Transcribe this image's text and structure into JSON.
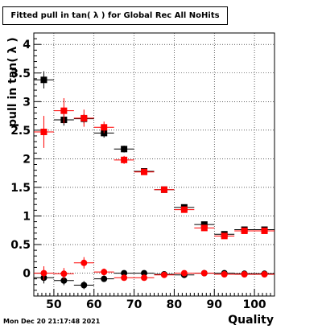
{
  "chart_data": {
    "type": "scatter",
    "title": "Fitted pull in tan( λ ) for Global Rec All NoHits",
    "xlabel": "Quality",
    "ylabel": "pull in tan( λ )",
    "xlim": [
      45,
      105
    ],
    "ylim": [
      -0.4,
      4.2
    ],
    "xticks": [
      50,
      60,
      70,
      80,
      90,
      100
    ],
    "yticks": [
      0,
      0.5,
      1,
      1.5,
      2,
      2.5,
      3,
      3.5,
      4
    ],
    "grid": true,
    "x_halfwidth": 2.5,
    "series": [
      {
        "name": "",
        "color": "#000000",
        "marker": "square",
        "x": [
          47.5,
          52.5,
          57.5,
          62.5,
          67.5,
          72.5,
          77.5,
          82.5,
          87.5,
          92.5,
          97.5,
          102.5
        ],
        "y": [
          3.38,
          2.68,
          2.7,
          2.45,
          2.17,
          1.78,
          1.46,
          1.15,
          0.85,
          0.68,
          0.76,
          0.76
        ],
        "yerr": [
          0.15,
          0.1,
          0.08,
          0.08,
          0.06,
          0.04,
          0.03,
          0.03,
          0.03,
          0.03,
          0.03,
          0.03
        ]
      },
      {
        "name": "",
        "color": "#ff0000",
        "marker": "square",
        "x": [
          47.5,
          52.5,
          57.5,
          62.5,
          67.5,
          72.5,
          77.5,
          82.5,
          87.5,
          92.5,
          97.5,
          102.5
        ],
        "y": [
          2.47,
          2.84,
          2.71,
          2.55,
          1.98,
          1.77,
          1.46,
          1.11,
          0.79,
          0.65,
          0.74,
          0.74
        ],
        "yerr": [
          0.28,
          0.22,
          0.15,
          0.1,
          0.07,
          0.05,
          0.04,
          0.04,
          0.04,
          0.04,
          0.04,
          0.04
        ]
      },
      {
        "name": "",
        "color": "#000000",
        "marker": "circle",
        "x": [
          47.5,
          52.5,
          57.5,
          62.5,
          67.5,
          72.5,
          77.5,
          82.5,
          87.5,
          92.5,
          97.5,
          102.5
        ],
        "y": [
          -0.08,
          -0.13,
          -0.21,
          -0.1,
          0.0,
          0.0,
          -0.02,
          -0.03,
          0.0,
          0.0,
          -0.01,
          -0.01
        ],
        "yerr": [
          0.1,
          0.08,
          0.07,
          0.05,
          0.04,
          0.03,
          0.02,
          0.02,
          0.02,
          0.02,
          0.02,
          0.02
        ]
      },
      {
        "name": "",
        "color": "#ff0000",
        "marker": "circle",
        "x": [
          47.5,
          52.5,
          57.5,
          62.5,
          67.5,
          72.5,
          77.5,
          82.5,
          87.5,
          92.5,
          97.5,
          102.5
        ],
        "y": [
          0.0,
          -0.01,
          0.18,
          0.02,
          -0.08,
          -0.08,
          -0.03,
          0.0,
          0.0,
          -0.02,
          -0.02,
          -0.02
        ],
        "yerr": [
          0.12,
          0.1,
          0.1,
          0.06,
          0.05,
          0.04,
          0.03,
          0.02,
          0.02,
          0.02,
          0.02,
          0.02
        ]
      }
    ]
  },
  "footer": {
    "datestamp": "Mon Dec 20 21:17:48 2021"
  }
}
